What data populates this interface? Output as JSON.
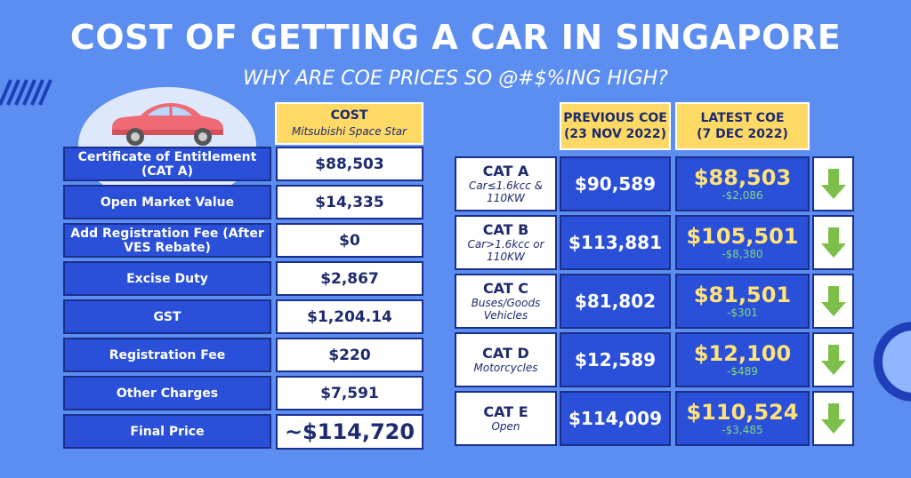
{
  "title": "COST OF GETTING A CAR IN SINGAPORE",
  "subtitle": "WHY ARE COE PRICES SO @#$%ING HIGH?",
  "cost_table": {
    "header": "COST",
    "header_sub": "Mitsubishi Space Star",
    "rows": [
      {
        "label": "Certificate of Entitlement (CAT A)",
        "value": "$88,503"
      },
      {
        "label": "Open Market Value",
        "value": "$14,335"
      },
      {
        "label": "Add Registration Fee (After VES Rebate)",
        "value": "$0"
      },
      {
        "label": "Excise Duty",
        "value": "$2,867"
      },
      {
        "label": "GST",
        "value": "$1,204.14"
      },
      {
        "label": "Registration Fee",
        "value": "$220"
      },
      {
        "label": "Other Charges",
        "value": "$7,591"
      },
      {
        "label": "Final Price",
        "value": "~$114,720"
      }
    ]
  },
  "coe_table": {
    "prev_header": "PREVIOUS COE",
    "prev_date": "(23 NOV 2022)",
    "latest_header": "LATEST COE",
    "latest_date": "(7 DEC 2022)",
    "rows": [
      {
        "cat": "CAT A",
        "desc": "Car≤1.6kcc & 110KW",
        "prev": "$90,589",
        "latest": "$88,503",
        "change": "-$2,086"
      },
      {
        "cat": "CAT B",
        "desc": "Car>1.6kcc or 110KW",
        "prev": "$113,881",
        "latest": "$105,501",
        "change": "-$8,380"
      },
      {
        "cat": "CAT C",
        "desc": "Buses/Goods Vehicles",
        "prev": "$81,802",
        "latest": "$81,501",
        "change": "-$301"
      },
      {
        "cat": "CAT D",
        "desc": "Motorcycles",
        "prev": "$12,589",
        "latest": "$12,100",
        "change": "-$489"
      },
      {
        "cat": "CAT E",
        "desc": "Open",
        "prev": "$114,009",
        "latest": "$110,524",
        "change": "-$3,485"
      }
    ]
  },
  "icons": {
    "car": "car-icon",
    "arrow": "down-arrow-icon"
  },
  "colors": {
    "background": "#5b8ef0",
    "header_fill": "#ffd966",
    "label_fill": "#2a4fd8",
    "latest_price": "#ffe27a",
    "arrow_green": "#7cbf4a"
  }
}
